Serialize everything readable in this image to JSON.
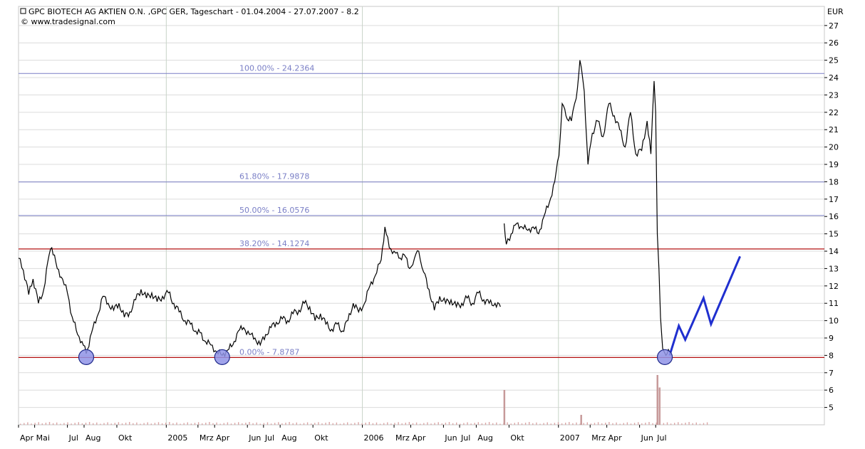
{
  "chart_data": {
    "type": "line",
    "title": "GPC BIOTECH AG AKTIEN O.N. ,GPC GER, Tageschart - 01.04.2004 - 27.07.2007 - 8.2",
    "subtitle": "© www.tradesignal.com",
    "currency_label": "EUR",
    "ylim": [
      4,
      28.1
    ],
    "y_ticks": [
      5,
      6,
      7,
      8,
      9,
      10,
      11,
      12,
      13,
      14,
      15,
      16,
      17,
      18,
      19,
      20,
      21,
      22,
      23,
      24,
      25,
      26,
      27
    ],
    "x_ticks": [
      {
        "label": "Apr",
        "date": "2004-04-01"
      },
      {
        "label": "Mai",
        "date": "2004-05-01"
      },
      {
        "label": "Jul",
        "date": "2004-07-01"
      },
      {
        "label": "Aug",
        "date": "2004-08-01"
      },
      {
        "label": "Okt",
        "date": "2004-10-01"
      },
      {
        "label": "2005",
        "date": "2005-01-01"
      },
      {
        "label": "Mrz",
        "date": "2005-03-01"
      },
      {
        "label": "Apr",
        "date": "2005-04-01"
      },
      {
        "label": "Jun",
        "date": "2005-06-01"
      },
      {
        "label": "Jul",
        "date": "2005-07-01"
      },
      {
        "label": "Aug",
        "date": "2005-08-01"
      },
      {
        "label": "Okt",
        "date": "2005-10-01"
      },
      {
        "label": "2006",
        "date": "2006-01-01"
      },
      {
        "label": "Mrz",
        "date": "2006-03-01"
      },
      {
        "label": "Apr",
        "date": "2006-04-01"
      },
      {
        "label": "Jun",
        "date": "2006-06-01"
      },
      {
        "label": "Jul",
        "date": "2006-07-01"
      },
      {
        "label": "Aug",
        "date": "2006-08-01"
      },
      {
        "label": "Okt",
        "date": "2006-10-01"
      },
      {
        "label": "2007",
        "date": "2007-01-01"
      },
      {
        "label": "Mrz",
        "date": "2007-03-01"
      },
      {
        "label": "Apr",
        "date": "2007-04-01"
      },
      {
        "label": "Jun",
        "date": "2007-06-01"
      },
      {
        "label": "Jul",
        "date": "2007-07-01"
      }
    ],
    "fibonacci": [
      {
        "label": "100.00% - 24.2364",
        "value": 24.2364
      },
      {
        "label": "61.80% - 17.9878",
        "value": 17.9878
      },
      {
        "label": "50.00% - 16.0576",
        "value": 16.0576
      },
      {
        "label": "38.20% - 14.1274",
        "value": 14.1274
      },
      {
        "label": "0.00% - 7.8787",
        "value": 7.8787
      }
    ],
    "support_lines": [
      14.1274,
      7.8787
    ],
    "price_series": [
      {
        "x": "2004-04-01",
        "y": 13.6
      },
      {
        "x": "2004-04-10",
        "y": 12.9
      },
      {
        "x": "2004-04-20",
        "y": 11.5
      },
      {
        "x": "2004-04-28",
        "y": 12.4
      },
      {
        "x": "2004-05-08",
        "y": 11.0
      },
      {
        "x": "2004-05-18",
        "y": 11.8
      },
      {
        "x": "2004-05-28",
        "y": 13.8
      },
      {
        "x": "2004-06-02",
        "y": 14.2
      },
      {
        "x": "2004-06-12",
        "y": 13.0
      },
      {
        "x": "2004-06-22",
        "y": 12.4
      },
      {
        "x": "2004-07-01",
        "y": 11.6
      },
      {
        "x": "2004-07-10",
        "y": 10.2
      },
      {
        "x": "2004-07-20",
        "y": 9.2
      },
      {
        "x": "2004-07-28",
        "y": 8.8
      },
      {
        "x": "2004-08-05",
        "y": 8.1
      },
      {
        "x": "2004-08-15",
        "y": 9.3
      },
      {
        "x": "2004-08-25",
        "y": 10.2
      },
      {
        "x": "2004-09-05",
        "y": 11.4
      },
      {
        "x": "2004-09-15",
        "y": 11.0
      },
      {
        "x": "2004-09-25",
        "y": 10.6
      },
      {
        "x": "2004-10-05",
        "y": 11.0
      },
      {
        "x": "2004-10-15",
        "y": 10.2
      },
      {
        "x": "2004-10-25",
        "y": 10.5
      },
      {
        "x": "2004-11-05",
        "y": 11.2
      },
      {
        "x": "2004-11-15",
        "y": 11.8
      },
      {
        "x": "2004-11-25",
        "y": 11.3
      },
      {
        "x": "2004-12-05",
        "y": 11.6
      },
      {
        "x": "2004-12-15",
        "y": 11.1
      },
      {
        "x": "2004-12-25",
        "y": 11.4
      },
      {
        "x": "2005-01-05",
        "y": 11.6
      },
      {
        "x": "2005-01-15",
        "y": 11.0
      },
      {
        "x": "2005-01-25",
        "y": 10.5
      },
      {
        "x": "2005-02-05",
        "y": 10.0
      },
      {
        "x": "2005-02-15",
        "y": 9.8
      },
      {
        "x": "2005-02-25",
        "y": 9.4
      },
      {
        "x": "2005-03-05",
        "y": 9.3
      },
      {
        "x": "2005-03-15",
        "y": 8.8
      },
      {
        "x": "2005-03-25",
        "y": 8.6
      },
      {
        "x": "2005-04-05",
        "y": 8.2
      },
      {
        "x": "2005-04-15",
        "y": 8.0
      },
      {
        "x": "2005-04-25",
        "y": 8.3
      },
      {
        "x": "2005-05-05",
        "y": 8.6
      },
      {
        "x": "2005-05-15",
        "y": 9.4
      },
      {
        "x": "2005-05-25",
        "y": 9.6
      },
      {
        "x": "2005-06-05",
        "y": 9.2
      },
      {
        "x": "2005-06-15",
        "y": 9.0
      },
      {
        "x": "2005-06-25",
        "y": 8.6
      },
      {
        "x": "2005-07-05",
        "y": 9.2
      },
      {
        "x": "2005-07-15",
        "y": 9.6
      },
      {
        "x": "2005-07-25",
        "y": 9.9
      },
      {
        "x": "2005-08-05",
        "y": 10.1
      },
      {
        "x": "2005-08-15",
        "y": 10.0
      },
      {
        "x": "2005-08-25",
        "y": 10.4
      },
      {
        "x": "2005-09-05",
        "y": 10.6
      },
      {
        "x": "2005-09-15",
        "y": 11.0
      },
      {
        "x": "2005-09-25",
        "y": 10.8
      },
      {
        "x": "2005-10-05",
        "y": 10.0
      },
      {
        "x": "2005-10-15",
        "y": 10.4
      },
      {
        "x": "2005-10-25",
        "y": 9.8
      },
      {
        "x": "2005-11-05",
        "y": 9.5
      },
      {
        "x": "2005-11-15",
        "y": 9.8
      },
      {
        "x": "2005-11-25",
        "y": 9.4
      },
      {
        "x": "2005-12-05",
        "y": 10.0
      },
      {
        "x": "2005-12-15",
        "y": 11.0
      },
      {
        "x": "2005-12-25",
        "y": 10.5
      },
      {
        "x": "2006-01-05",
        "y": 11.0
      },
      {
        "x": "2006-01-15",
        "y": 12.0
      },
      {
        "x": "2006-01-25",
        "y": 12.6
      },
      {
        "x": "2006-02-05",
        "y": 13.5
      },
      {
        "x": "2006-02-12",
        "y": 15.4
      },
      {
        "x": "2006-02-20",
        "y": 14.2
      },
      {
        "x": "2006-03-01",
        "y": 14.0
      },
      {
        "x": "2006-03-10",
        "y": 13.6
      },
      {
        "x": "2006-03-20",
        "y": 13.8
      },
      {
        "x": "2006-03-30",
        "y": 13.0
      },
      {
        "x": "2006-04-08",
        "y": 13.6
      },
      {
        "x": "2006-04-16",
        "y": 14.0
      },
      {
        "x": "2006-04-25",
        "y": 12.8
      },
      {
        "x": "2006-05-05",
        "y": 11.8
      },
      {
        "x": "2006-05-15",
        "y": 10.6
      },
      {
        "x": "2006-05-25",
        "y": 11.4
      },
      {
        "x": "2006-06-05",
        "y": 11.0
      },
      {
        "x": "2006-06-15",
        "y": 11.2
      },
      {
        "x": "2006-06-25",
        "y": 10.8
      },
      {
        "x": "2006-07-05",
        "y": 11.0
      },
      {
        "x": "2006-07-15",
        "y": 11.3
      },
      {
        "x": "2006-07-25",
        "y": 11.0
      },
      {
        "x": "2006-08-05",
        "y": 11.6
      },
      {
        "x": "2006-08-15",
        "y": 11.2
      },
      {
        "x": "2006-08-25",
        "y": 11.0
      },
      {
        "x": "2006-09-05",
        "y": 11.0
      },
      {
        "x": "2006-09-15",
        "y": 10.8
      },
      {
        "x": "2006-09-22",
        "y": 15.6
      },
      {
        "x": "2006-09-26",
        "y": 14.4
      },
      {
        "x": "2006-10-05",
        "y": 15.0
      },
      {
        "x": "2006-10-15",
        "y": 15.6
      },
      {
        "x": "2006-10-25",
        "y": 15.4
      },
      {
        "x": "2006-11-05",
        "y": 15.2
      },
      {
        "x": "2006-11-15",
        "y": 15.4
      },
      {
        "x": "2006-11-25",
        "y": 15.0
      },
      {
        "x": "2006-12-05",
        "y": 16.0
      },
      {
        "x": "2006-12-15",
        "y": 16.8
      },
      {
        "x": "2006-12-25",
        "y": 18.0
      },
      {
        "x": "2007-01-02",
        "y": 19.5
      },
      {
        "x": "2007-01-08",
        "y": 22.5
      },
      {
        "x": "2007-01-15",
        "y": 21.8
      },
      {
        "x": "2007-01-25",
        "y": 21.5
      },
      {
        "x": "2007-02-03",
        "y": 22.8
      },
      {
        "x": "2007-02-10",
        "y": 25.0
      },
      {
        "x": "2007-02-18",
        "y": 23.2
      },
      {
        "x": "2007-02-25",
        "y": 19.0
      },
      {
        "x": "2007-03-05",
        "y": 20.8
      },
      {
        "x": "2007-03-15",
        "y": 21.5
      },
      {
        "x": "2007-03-25",
        "y": 20.6
      },
      {
        "x": "2007-04-05",
        "y": 22.5
      },
      {
        "x": "2007-04-15",
        "y": 21.8
      },
      {
        "x": "2007-04-25",
        "y": 21.0
      },
      {
        "x": "2007-05-05",
        "y": 20.0
      },
      {
        "x": "2007-05-15",
        "y": 22.0
      },
      {
        "x": "2007-05-25",
        "y": 19.6
      },
      {
        "x": "2007-06-05",
        "y": 19.8
      },
      {
        "x": "2007-06-15",
        "y": 21.5
      },
      {
        "x": "2007-06-22",
        "y": 19.6
      },
      {
        "x": "2007-06-28",
        "y": 23.8
      },
      {
        "x": "2007-07-01",
        "y": 22.0
      },
      {
        "x": "2007-07-04",
        "y": 15.0
      },
      {
        "x": "2007-07-07",
        "y": 13.0
      },
      {
        "x": "2007-07-10",
        "y": 10.2
      },
      {
        "x": "2007-07-14",
        "y": 8.4
      },
      {
        "x": "2007-07-20",
        "y": 8.0
      },
      {
        "x": "2007-07-27",
        "y": 8.2
      }
    ],
    "projection": [
      {
        "x": "2007-07-27",
        "y": 8.0
      },
      {
        "x": "2007-08-13",
        "y": 9.7
      },
      {
        "x": "2007-08-25",
        "y": 8.9
      },
      {
        "x": "2007-09-28",
        "y": 11.3
      },
      {
        "x": "2007-10-12",
        "y": 9.8
      },
      {
        "x": "2007-12-05",
        "y": 13.7
      }
    ],
    "markers": [
      {
        "x": "2004-08-05",
        "y": 7.9
      },
      {
        "x": "2005-04-15",
        "y": 7.9
      },
      {
        "x": "2007-07-18",
        "y": 7.9
      }
    ],
    "volume_spikes": [
      {
        "x": "2006-09-22",
        "v": 0.7
      },
      {
        "x": "2007-02-12",
        "v": 0.2
      },
      {
        "x": "2007-07-04",
        "v": 1.0
      },
      {
        "x": "2007-07-08",
        "v": 0.75
      }
    ]
  }
}
